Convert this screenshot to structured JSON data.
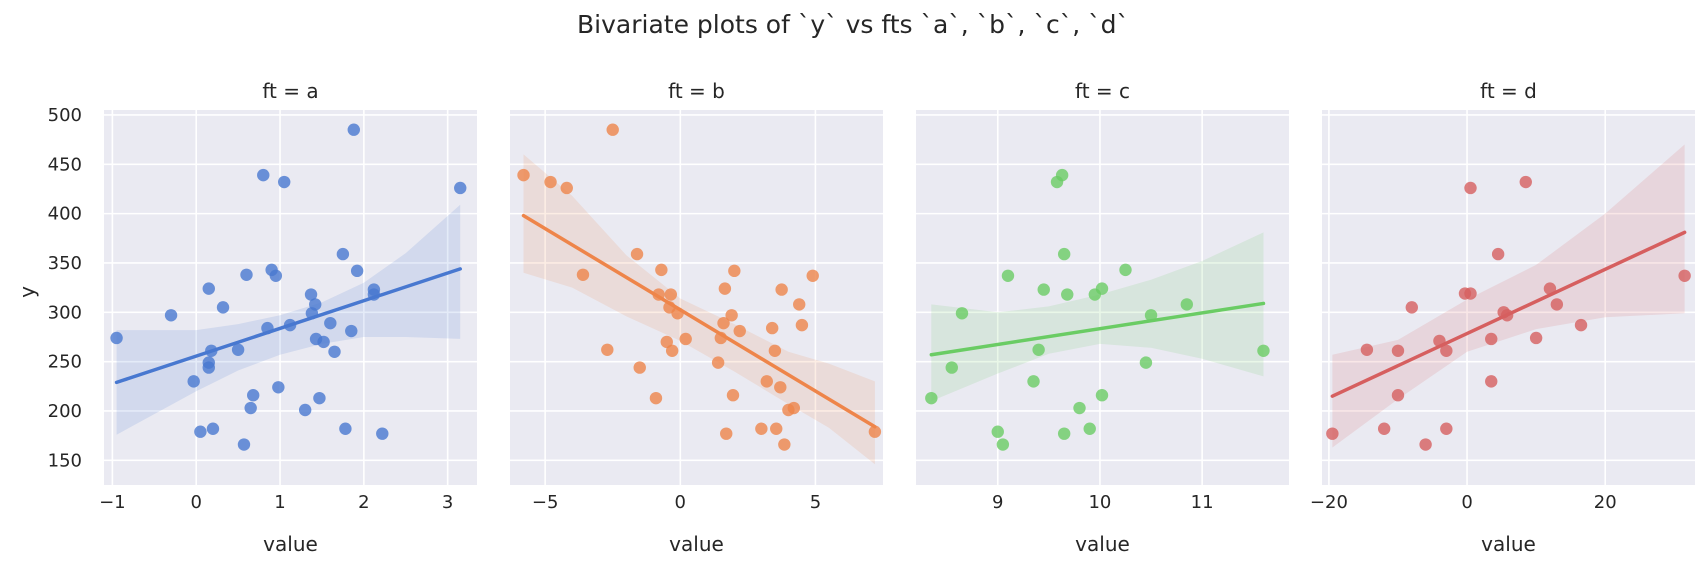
{
  "chart_data": {
    "type": "scatter",
    "title": "Bivariate plots of `y` vs fts `a`, `b`, `c`, `d`",
    "ylabel": "y",
    "ylim": [
      125,
      505
    ],
    "yticks": [
      150,
      200,
      250,
      300,
      350,
      400,
      450,
      500
    ],
    "grid": true,
    "panels": [
      {
        "title": "ft = a",
        "xlabel": "value",
        "color": "#4878d0",
        "xlim": [
          -1.1,
          3.35
        ],
        "xticks": [
          -1,
          0,
          1,
          2,
          3
        ],
        "x_tick_labels": [
          "−1",
          "0",
          "1",
          "2",
          "3"
        ],
        "points": [
          [
            -0.95,
            274
          ],
          [
            -0.3,
            297
          ],
          [
            -0.03,
            230
          ],
          [
            0.05,
            179
          ],
          [
            0.15,
            249
          ],
          [
            0.15,
            244
          ],
          [
            0.15,
            324
          ],
          [
            0.18,
            261
          ],
          [
            0.2,
            182
          ],
          [
            0.32,
            305
          ],
          [
            0.5,
            262
          ],
          [
            0.57,
            166
          ],
          [
            0.6,
            338
          ],
          [
            0.65,
            203
          ],
          [
            0.68,
            216
          ],
          [
            0.8,
            439
          ],
          [
            0.85,
            284
          ],
          [
            0.9,
            343
          ],
          [
            0.95,
            337
          ],
          [
            0.98,
            224
          ],
          [
            1.05,
            432
          ],
          [
            1.12,
            287
          ],
          [
            1.3,
            201
          ],
          [
            1.37,
            318
          ],
          [
            1.38,
            299
          ],
          [
            1.42,
            308
          ],
          [
            1.43,
            273
          ],
          [
            1.47,
            213
          ],
          [
            1.52,
            270
          ],
          [
            1.6,
            289
          ],
          [
            1.65,
            260
          ],
          [
            1.75,
            359
          ],
          [
            1.78,
            182
          ],
          [
            1.85,
            281
          ],
          [
            1.88,
            485
          ],
          [
            1.92,
            342
          ],
          [
            2.12,
            323
          ],
          [
            2.12,
            318
          ],
          [
            2.22,
            177
          ],
          [
            3.15,
            426
          ]
        ],
        "fit": {
          "x": [
            -0.95,
            3.15
          ],
          "y": [
            229,
            344
          ]
        },
        "ci": {
          "x": [
            -0.95,
            0.0,
            0.5,
            1.0,
            1.5,
            2.0,
            2.5,
            3.15
          ],
          "lower": [
            176,
            220,
            241,
            257,
            268,
            275,
            275,
            273
          ],
          "upper": [
            282,
            282,
            288,
            297,
            310,
            330,
            360,
            409
          ]
        }
      },
      {
        "title": "ft = b",
        "xlabel": "value",
        "color": "#ee854a",
        "xlim": [
          -6.3,
          7.5
        ],
        "xticks": [
          -5,
          0,
          5
        ],
        "x_tick_labels": [
          "−5",
          "0",
          "5"
        ],
        "points": [
          [
            -5.8,
            439
          ],
          [
            -4.8,
            432
          ],
          [
            -4.2,
            426
          ],
          [
            -3.6,
            338
          ],
          [
            -2.7,
            262
          ],
          [
            -2.5,
            485
          ],
          [
            -1.6,
            359
          ],
          [
            -1.5,
            244
          ],
          [
            -0.9,
            213
          ],
          [
            -0.8,
            318
          ],
          [
            -0.7,
            343
          ],
          [
            -0.5,
            270
          ],
          [
            -0.4,
            305
          ],
          [
            -0.35,
            318
          ],
          [
            -0.3,
            261
          ],
          [
            -0.1,
            299
          ],
          [
            0.2,
            273
          ],
          [
            1.4,
            249
          ],
          [
            1.5,
            274
          ],
          [
            1.6,
            289
          ],
          [
            1.65,
            324
          ],
          [
            1.7,
            177
          ],
          [
            1.9,
            297
          ],
          [
            1.95,
            216
          ],
          [
            2.0,
            342
          ],
          [
            2.2,
            281
          ],
          [
            3.0,
            182
          ],
          [
            3.2,
            230
          ],
          [
            3.4,
            284
          ],
          [
            3.5,
            261
          ],
          [
            3.55,
            182
          ],
          [
            3.7,
            224
          ],
          [
            3.75,
            323
          ],
          [
            3.85,
            166
          ],
          [
            4.0,
            201
          ],
          [
            4.2,
            203
          ],
          [
            4.4,
            308
          ],
          [
            4.5,
            287
          ],
          [
            4.9,
            337
          ],
          [
            7.2,
            179
          ]
        ],
        "fit": {
          "x": [
            -5.8,
            7.2
          ],
          "y": [
            398,
            184
          ]
        },
        "ci": {
          "x": [
            -5.8,
            -4.0,
            -2.0,
            0.0,
            2.0,
            4.0,
            5.5,
            7.2
          ],
          "lower": [
            340,
            325,
            296,
            271,
            240,
            207,
            183,
            146
          ],
          "upper": [
            460,
            418,
            358,
            314,
            288,
            260,
            248,
            230
          ]
        }
      },
      {
        "title": "ft = c",
        "xlabel": "value",
        "color": "#6acc64",
        "xlim": [
          8.2,
          11.85
        ],
        "xticks": [
          9,
          10,
          11
        ],
        "x_tick_labels": [
          "9",
          "10",
          "11"
        ],
        "points": [
          [
            8.35,
            213
          ],
          [
            8.55,
            244
          ],
          [
            8.65,
            299
          ],
          [
            9.0,
            179
          ],
          [
            9.05,
            166
          ],
          [
            9.1,
            337
          ],
          [
            9.35,
            230
          ],
          [
            9.4,
            262
          ],
          [
            9.45,
            323
          ],
          [
            9.58,
            432
          ],
          [
            9.63,
            439
          ],
          [
            9.65,
            359
          ],
          [
            9.65,
            177
          ],
          [
            9.68,
            318
          ],
          [
            9.8,
            203
          ],
          [
            9.9,
            182
          ],
          [
            9.95,
            318
          ],
          [
            10.02,
            216
          ],
          [
            10.02,
            324
          ],
          [
            10.25,
            343
          ],
          [
            10.45,
            249
          ],
          [
            10.5,
            297
          ],
          [
            10.85,
            308
          ],
          [
            11.6,
            261
          ]
        ],
        "fit": {
          "x": [
            8.35,
            11.6
          ],
          "y": [
            257,
            309
          ]
        },
        "ci": {
          "x": [
            8.35,
            9.0,
            9.5,
            10.0,
            10.5,
            11.0,
            11.6
          ],
          "lower": [
            210,
            238,
            258,
            268,
            264,
            253,
            235
          ],
          "upper": [
            308,
            300,
            306,
            318,
            333,
            352,
            381
          ]
        }
      },
      {
        "title": "ft = d",
        "xlabel": "value",
        "color": "#d65f5f",
        "xlim": [
          -21,
          33
        ],
        "xticks": [
          -20,
          0,
          20
        ],
        "x_tick_labels": [
          "−20",
          "0",
          "20"
        ],
        "points": [
          [
            -19.5,
            177
          ],
          [
            -14.5,
            262
          ],
          [
            -12,
            182
          ],
          [
            -10,
            261
          ],
          [
            -10,
            216
          ],
          [
            -8,
            305
          ],
          [
            -6,
            166
          ],
          [
            -4,
            271
          ],
          [
            -3,
            182
          ],
          [
            -3,
            261
          ],
          [
            -0.3,
            319
          ],
          [
            0.5,
            426
          ],
          [
            0.5,
            319
          ],
          [
            3.5,
            230
          ],
          [
            3.5,
            273
          ],
          [
            4.5,
            359
          ],
          [
            5.3,
            300
          ],
          [
            5.8,
            297
          ],
          [
            8.5,
            432
          ],
          [
            10,
            274
          ],
          [
            12,
            324
          ],
          [
            13,
            308
          ],
          [
            16.5,
            287
          ],
          [
            31.5,
            337
          ]
        ],
        "fit": {
          "x": [
            -19.5,
            31.5
          ],
          "y": [
            215,
            381
          ]
        },
        "ci": {
          "x": [
            -19.5,
            -10.0,
            0.0,
            10.0,
            20.0,
            31.5
          ],
          "lower": [
            163,
            212,
            260,
            283,
            295,
            299
          ],
          "upper": [
            257,
            272,
            313,
            348,
            400,
            470
          ]
        }
      }
    ]
  }
}
